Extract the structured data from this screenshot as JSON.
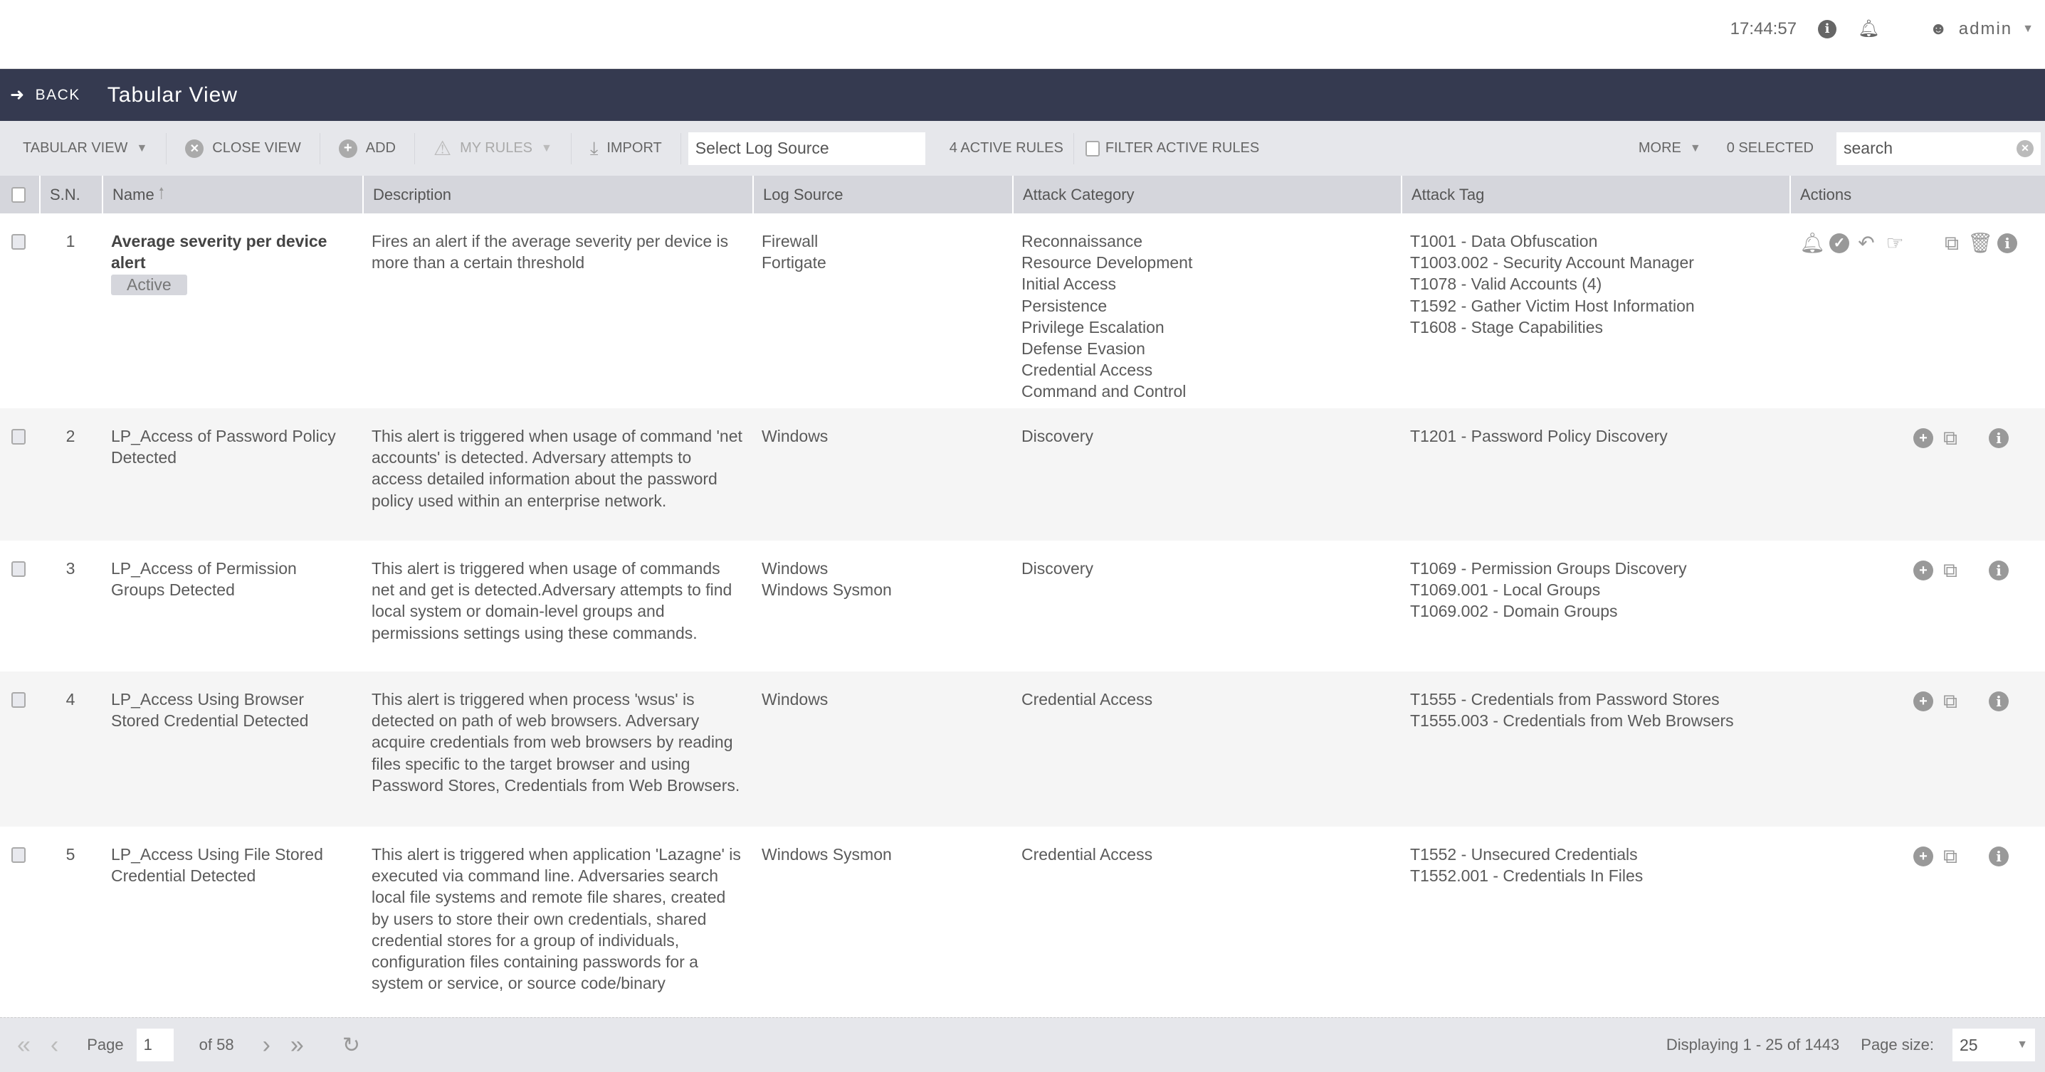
{
  "topbar": {
    "time": "17:44:57",
    "user": "admin"
  },
  "navbar": {
    "back": "BACK",
    "title": "Tabular View"
  },
  "toolbar": {
    "tabular_view": "TABULAR VIEW",
    "close_view": "CLOSE VIEW",
    "add": "ADD",
    "my_rules": "MY RULES",
    "import": "IMPORT",
    "log_source_placeholder": "Select Log Source",
    "active_rules": "4 ACTIVE RULES",
    "filter_active": "FILTER ACTIVE RULES",
    "more": "MORE",
    "selected": "0 SELECTED",
    "search_placeholder": "search"
  },
  "columns": [
    "S.N.",
    "Name",
    "Description",
    "Log Source",
    "Attack Category",
    "Attack Tag",
    "Actions"
  ],
  "rows": [
    {
      "sn": "1",
      "name": "Average severity per device alert",
      "badge": "Active",
      "description": "Fires an alert if the average severity per device is more than a certain threshold",
      "log_source": "Firewall\nFortigate",
      "category": "Reconnaissance\nResource Development\nInitial Access\nPersistence\nPrivilege Escalation\nDefense Evasion\nCredential Access\nCommand and Control",
      "tags": "T1001 - Data Obfuscation\nT1003.002 - Security Account Manager\nT1078 - Valid Accounts (4)\nT1592 - Gather Victim Host Information\nT1608 - Stage Capabilities"
    },
    {
      "sn": "2",
      "name": "LP_Access of Password Policy Detected",
      "description": "This alert is triggered when usage of command 'net accounts' is detected. Adversary attempts to access detailed information about the password policy used within an enterprise network.",
      "log_source": "Windows",
      "category": "Discovery",
      "tags": "T1201 - Password Policy Discovery"
    },
    {
      "sn": "3",
      "name": "LP_Access of Permission Groups Detected",
      "description": "This alert is triggered when usage of commands net and get is detected.Adversary attempts to find local system or domain-level groups and permissions settings using these commands.",
      "log_source": "Windows\nWindows Sysmon",
      "category": "Discovery",
      "tags": "T1069 - Permission Groups Discovery\nT1069.001 - Local Groups\nT1069.002 - Domain Groups"
    },
    {
      "sn": "4",
      "name": "LP_Access Using Browser Stored Credential Detected",
      "description": "This alert is triggered when process 'wsus' is detected on path of web browsers. Adversary acquire credentials from web browsers by reading files specific to the target browser and using Password Stores, Credentials from Web Browsers.",
      "log_source": "Windows",
      "category": "Credential Access",
      "tags": "T1555 - Credentials from Password Stores\nT1555.003 - Credentials from Web Browsers"
    },
    {
      "sn": "5",
      "name": "LP_Access Using File Stored Credential Detected",
      "description": "This alert is triggered when application 'Lazagne' is executed via command line. Adversaries search local file systems and remote file shares, created by users to store their own credentials, shared credential stores for a group of individuals, configuration files containing passwords for a system or service, or source code/binary",
      "log_source": "Windows Sysmon",
      "category": "Credential Access",
      "tags": "T1552 - Unsecured Credentials\nT1552.001 - Credentials In Files"
    }
  ],
  "footer": {
    "page_label": "Page",
    "page": "1",
    "of": "of 58",
    "displaying": "Displaying 1 - 25 of 1443",
    "page_size_label": "Page size:",
    "page_size": "25"
  }
}
